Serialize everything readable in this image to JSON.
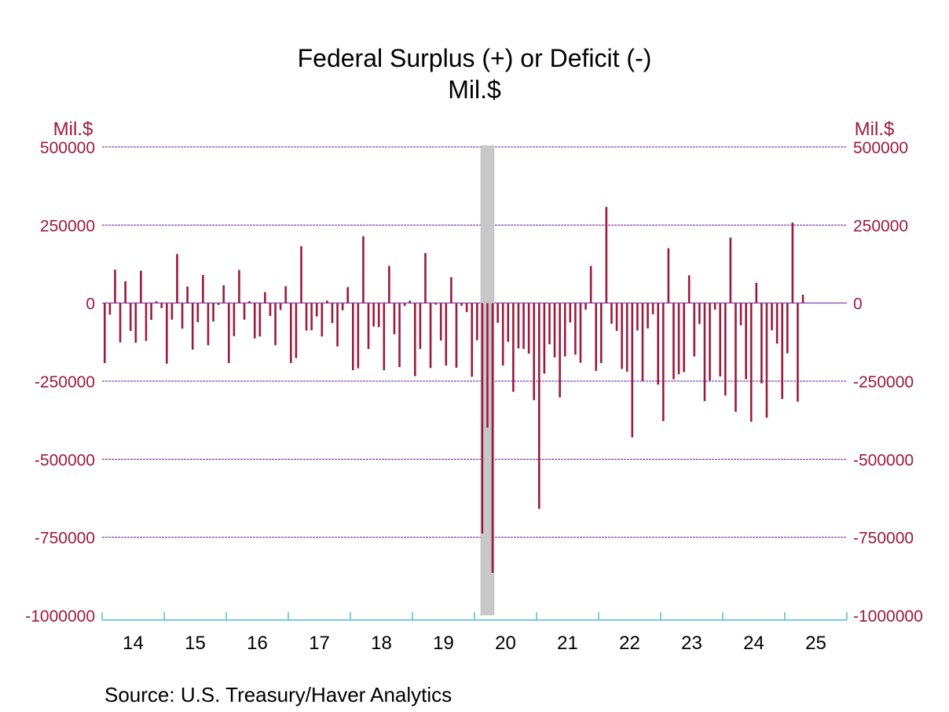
{
  "chart_data": {
    "type": "bar",
    "title": "Federal Surplus (+) or Deficit (-)",
    "subtitle": "Mil.$",
    "ylabel_left": "Mil.$",
    "ylabel_right": "Mil.$",
    "ylim": [
      -1000000,
      500000
    ],
    "yticks": [
      500000,
      250000,
      0,
      -250000,
      -500000,
      -750000,
      -1000000
    ],
    "ytick_labels": [
      "500000",
      "250000",
      "0",
      "-250000",
      "-500000",
      "-750000",
      "-1000000"
    ],
    "xtick_labels": [
      "14",
      "15",
      "16",
      "17",
      "18",
      "19",
      "20",
      "21",
      "22",
      "23",
      "24",
      "25"
    ],
    "x_start_year": 2014,
    "recession_shade": {
      "start": "2020-02",
      "end": "2020-04"
    },
    "source": "Source:  U.S. Treasury/Haver Analytics",
    "bar_color": "#9b1a3f",
    "axis_text_color": "#9b1a3f",
    "grid_color": "#6a1a99",
    "axis_color": "#4fbfd6",
    "shade_color": "#c8c8c8",
    "series": [
      {
        "name": "Federal Surplus (+) or Deficit (-)",
        "start": "2014-01",
        "values": [
          -192000,
          -37000,
          107000,
          -126000,
          70000,
          -89000,
          -127000,
          104000,
          -121000,
          -54000,
          6000,
          -16000,
          -194000,
          -53000,
          157000,
          -82000,
          53000,
          -149000,
          -61000,
          90000,
          -135000,
          -59000,
          -6000,
          57000,
          -192000,
          -106000,
          106000,
          -53000,
          6000,
          -113000,
          -107000,
          35000,
          -41000,
          -135000,
          -22000,
          54000,
          -192000,
          -176000,
          182000,
          -88000,
          -87000,
          -43000,
          -107000,
          8000,
          -64000,
          -139000,
          -23000,
          51000,
          -215000,
          -209000,
          214000,
          -147000,
          -75000,
          -77000,
          -215000,
          119000,
          -100000,
          -205000,
          -9000,
          8000,
          -234000,
          -147000,
          160000,
          -208000,
          -5000,
          -120000,
          -200000,
          83000,
          -207000,
          -9000,
          -29000,
          -236000,
          -119000,
          -738000,
          -399000,
          -864000,
          -63000,
          -200000,
          -124000,
          -284000,
          -145000,
          -147000,
          -162000,
          -311000,
          -659000,
          -226000,
          -132000,
          -174000,
          -302000,
          -171000,
          -62000,
          -165000,
          -191000,
          -21000,
          119000,
          -217000,
          -192000,
          308000,
          -66000,
          -89000,
          -211000,
          -220000,
          -430000,
          -88000,
          -249000,
          -81000,
          -36000,
          -261000,
          -378000,
          176000,
          -244000,
          -228000,
          -221000,
          89000,
          -171000,
          -67000,
          -314000,
          -248000,
          -21000,
          -235000,
          -296000,
          210000,
          -348000,
          -71000,
          -244000,
          -380000,
          65000,
          -257000,
          -367000,
          -87000,
          -130000,
          -307000,
          -161000,
          258000,
          -316000,
          27000
        ]
      }
    ]
  }
}
